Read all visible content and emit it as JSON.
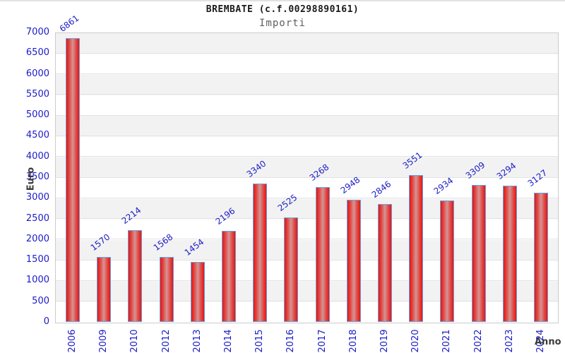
{
  "header": {
    "title": "BREMBATE (c.f.00298890161)",
    "subtitle": "Importi"
  },
  "chart_data": {
    "type": "bar",
    "title": "BREMBATE (c.f.00298890161)",
    "subtitle": "Importi",
    "xlabel": "Anno",
    "ylabel": "Euro",
    "categories": [
      "2006",
      "2009",
      "2010",
      "2012",
      "2013",
      "2014",
      "2015",
      "2016",
      "2017",
      "2018",
      "2019",
      "2020",
      "2021",
      "2022",
      "2023",
      "2024"
    ],
    "values": [
      6861,
      1570,
      2214,
      1568,
      1454,
      2196,
      3340,
      2525,
      3268,
      2948,
      2846,
      3551,
      2934,
      3309,
      3294,
      3127
    ],
    "ylim": [
      0,
      7000
    ],
    "ytick_step": 500,
    "grid": "horizontal-bands",
    "legend": "none",
    "colors": {
      "bar_fill_edge": "#e61414",
      "bar_fill_center": "#d49595",
      "bar_border": "#66a3e0",
      "tick_label": "#1b1bc8",
      "value_label": "#2020c8",
      "axis_title": "#3a3a3a",
      "band_gray": "#f2f2f2",
      "gridline": "#e3e3e3",
      "plot_border": "#cccccc"
    }
  }
}
